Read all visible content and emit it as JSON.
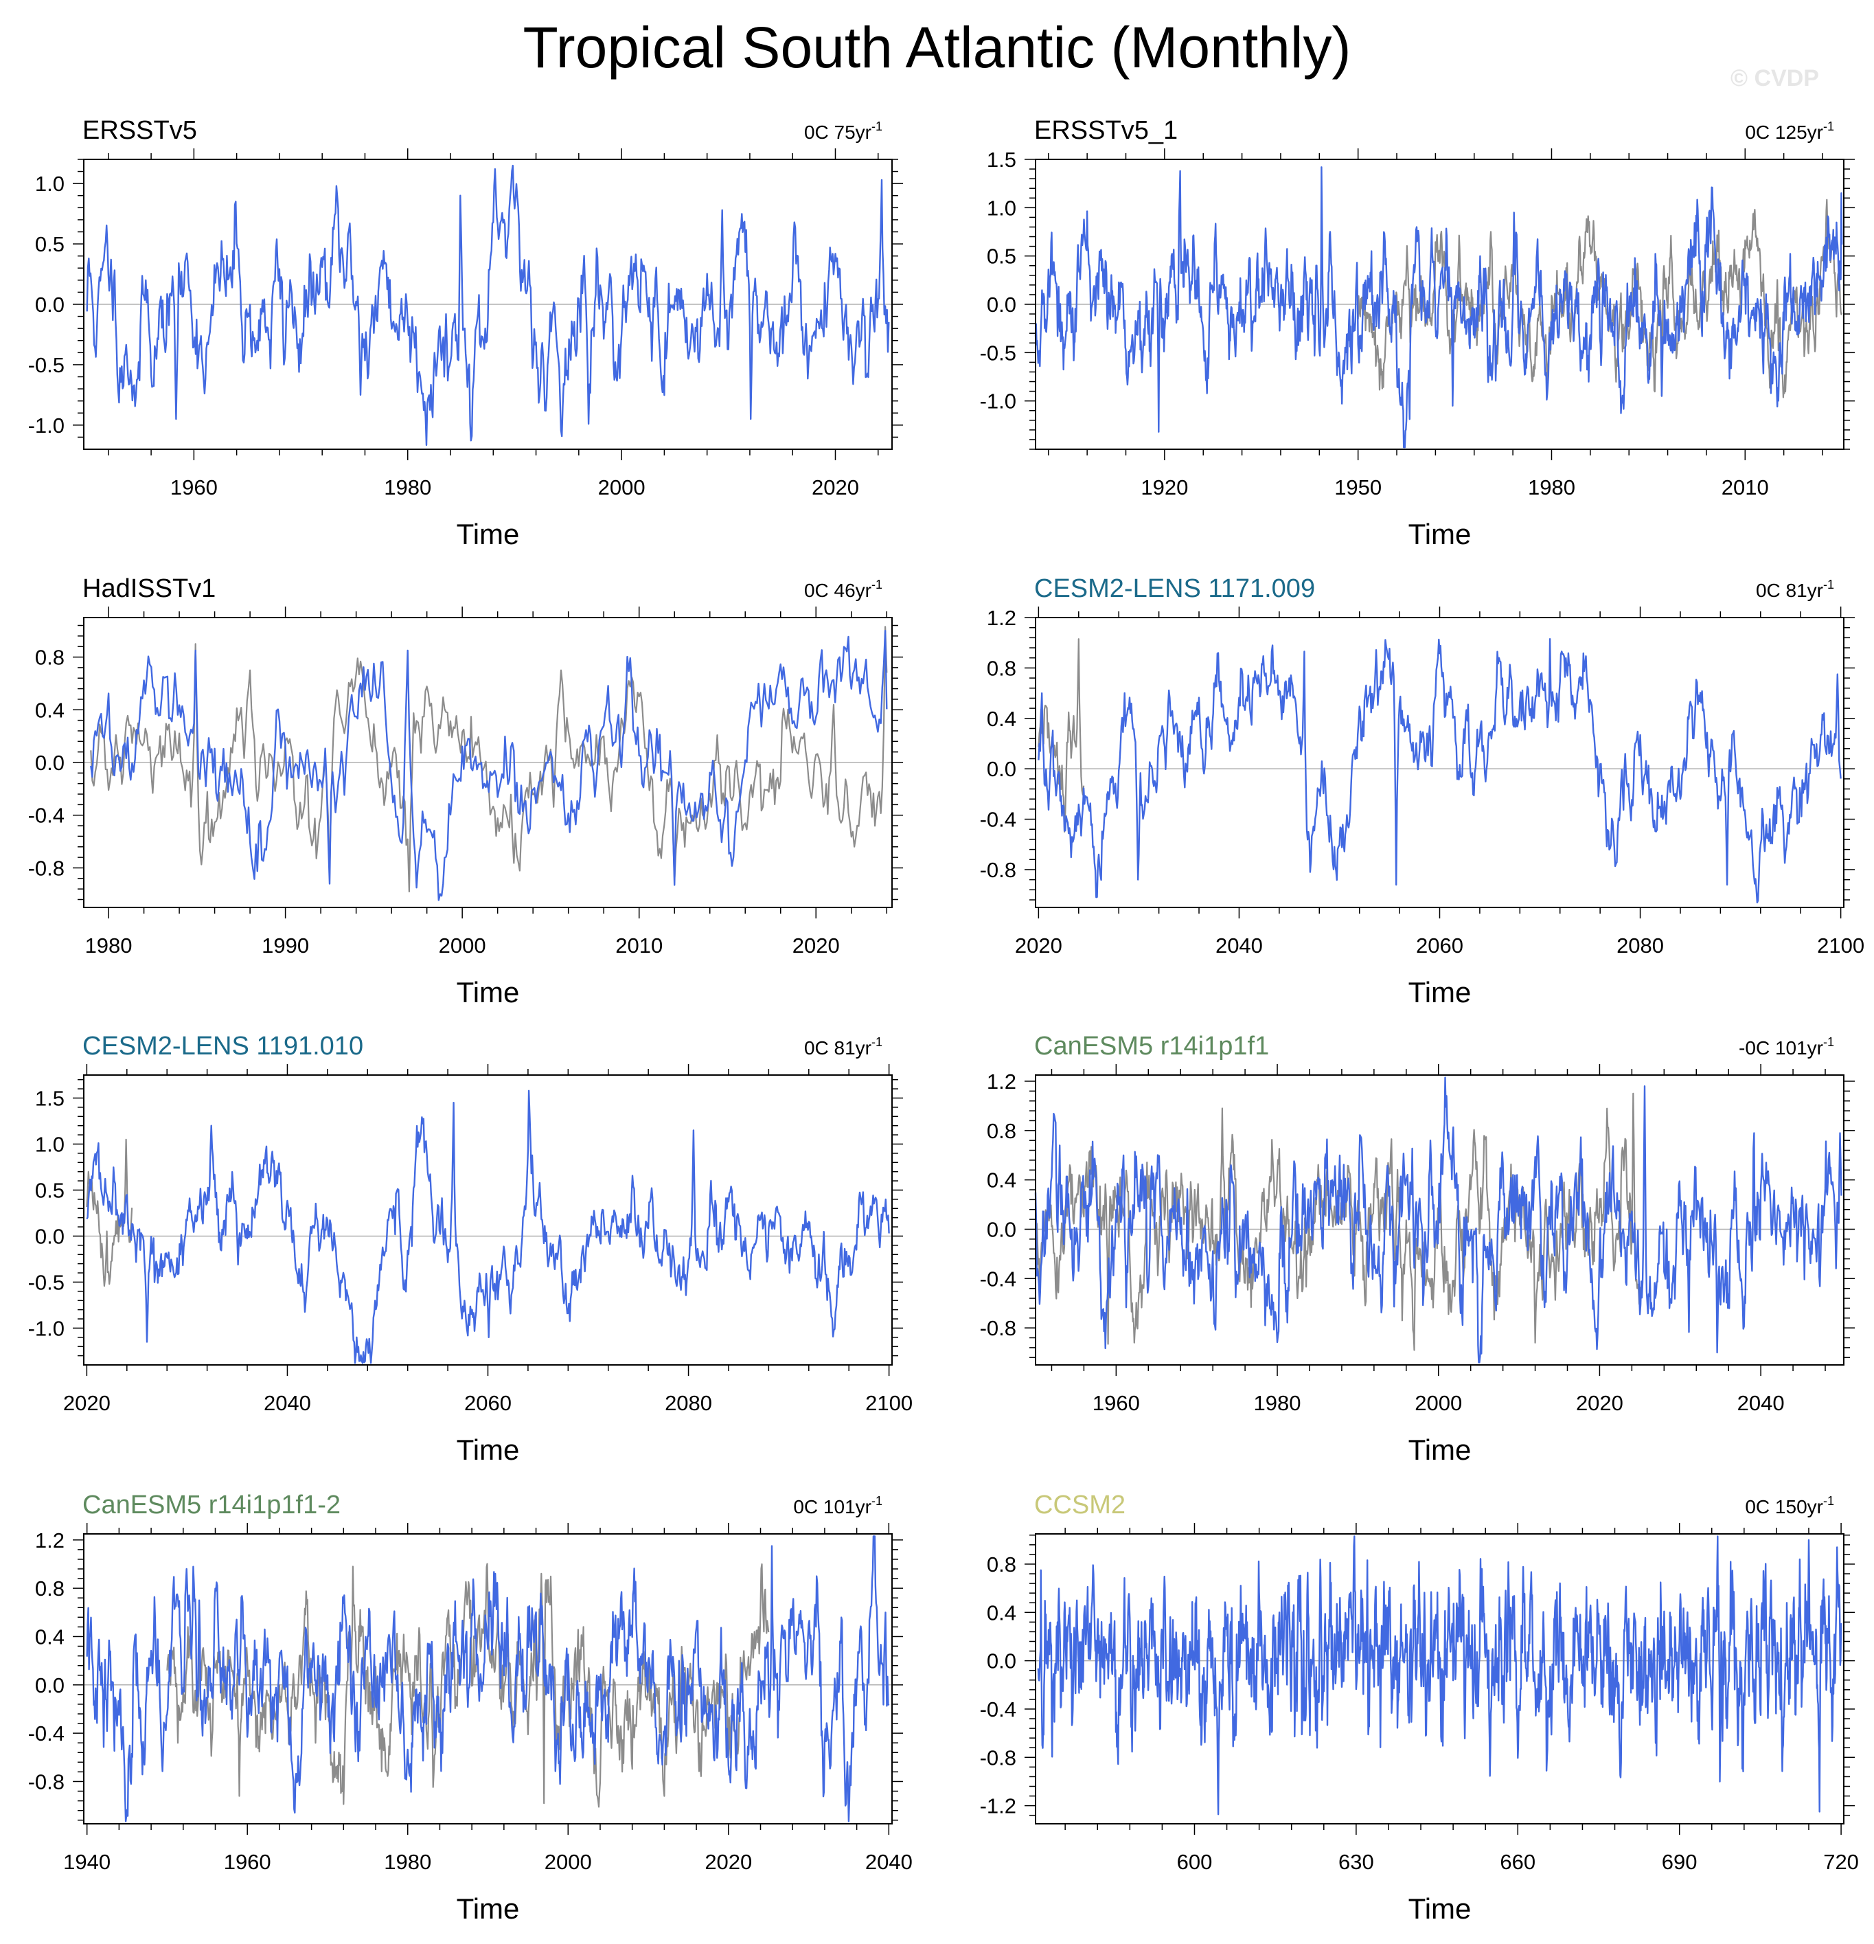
{
  "title": "Tropical South Atlantic (Monthly)",
  "watermark": "© CVDP",
  "colors": {
    "series": "#4169e1",
    "reference": "#8c8c8c",
    "zero_line": "#b0b0b0"
  },
  "chart_data": [
    {
      "type": "line",
      "name": "ERSSTv5",
      "name_color": "#000000",
      "trend": "0C 75yr",
      "xlabel": "Time",
      "xlim": [
        1949.7,
        2025.3
      ],
      "ylim": [
        -1.2,
        1.2
      ],
      "xticks": [
        1960,
        1980,
        2000,
        2020
      ],
      "yticks": [
        -1.0,
        -0.5,
        0.0,
        0.5,
        1.0
      ],
      "ytick_labels": [
        "-1.0",
        "-0.5",
        "0.0",
        "0.5",
        "1.0"
      ],
      "series": [
        {
          "role": "main",
          "x_start": 1950.0,
          "x_end": 2025.0,
          "seed": 11,
          "amp": 0.42,
          "persist": 0.93,
          "peaks": [
            [
              1950.2,
              0.38
            ],
            [
              1952.8,
              -0.58
            ],
            [
              1958.3,
              -0.95
            ],
            [
              1963.9,
              0.85
            ],
            [
              1968.4,
              -0.5
            ],
            [
              1973.3,
              0.98
            ],
            [
              1975.6,
              -0.75
            ],
            [
              1984.9,
              0.9
            ],
            [
              1989.0,
              0.7
            ],
            [
              1992.8,
              -0.88
            ],
            [
              1996.9,
              -0.99
            ],
            [
              2009.4,
              0.78
            ],
            [
              2012.1,
              -0.95
            ],
            [
              2024.3,
              1.03
            ]
          ]
        }
      ]
    },
    {
      "type": "line",
      "name": "ERSSTv5_1",
      "name_color": "#000000",
      "trend": "0C 125yr",
      "xlabel": "Time",
      "xlim": [
        1900,
        2025.3
      ],
      "ylim": [
        -1.5,
        1.5
      ],
      "xticks": [
        1920,
        1950,
        1980,
        2010
      ],
      "yticks": [
        -1.0,
        -0.5,
        0.0,
        0.5,
        1.0,
        1.5
      ],
      "ytick_labels": [
        "-1.0",
        "-0.5",
        "0.0",
        "0.5",
        "1.0",
        "1.5"
      ],
      "series": [
        {
          "role": "reference",
          "x_start": 1950.0,
          "x_end": 2025.0,
          "seed": 12,
          "amp": 0.36,
          "persist": 0.93,
          "peaks": [
            [
              1974.2,
              0.95
            ],
            [
              1997.1,
              -0.95
            ]
          ]
        },
        {
          "role": "main",
          "x_start": 1900.0,
          "x_end": 2025.0,
          "seed": 13,
          "amp": 0.4,
          "persist": 0.9,
          "peaks": [
            [
              1919.1,
              -1.32
            ],
            [
              1922.4,
              1.38
            ],
            [
              1944.3,
              1.42
            ],
            [
              1956.5,
              -1.0
            ],
            [
              1964.7,
              -1.05
            ],
            [
              1974.2,
              0.95
            ],
            [
              1997.1,
              -0.95
            ],
            [
              2024.9,
              1.15
            ]
          ]
        }
      ]
    },
    {
      "type": "line",
      "name": "HadISSTv1",
      "name_color": "#000000",
      "trend": "0C 46yr",
      "xlabel": "Time",
      "xlim": [
        1978.6,
        2024.3
      ],
      "ylim": [
        -1.1,
        1.1
      ],
      "xticks": [
        1980,
        1990,
        2000,
        2010,
        2020
      ],
      "yticks": [
        -0.8,
        -0.4,
        0.0,
        0.4,
        0.8
      ],
      "ytick_labels": [
        "-0.8",
        "-0.4",
        "0.0",
        "0.4",
        "0.8"
      ],
      "series": [
        {
          "role": "reference",
          "x_start": 1979.0,
          "x_end": 2024.0,
          "seed": 21,
          "amp": 0.34,
          "persist": 0.93,
          "peaks": [
            [
              1981.0,
              0.3
            ],
            [
              1984.9,
              0.9
            ],
            [
              1988.0,
              0.7
            ],
            [
              1992.5,
              -0.85
            ],
            [
              1997.0,
              -0.98
            ],
            [
              2012.0,
              -0.9
            ],
            [
              2023.9,
              1.03
            ]
          ]
        },
        {
          "role": "main",
          "x_start": 1979.0,
          "x_end": 2024.0,
          "seed": 22,
          "amp": 0.34,
          "persist": 0.93,
          "peaks": [
            [
              1984.9,
              0.85
            ],
            [
              1992.5,
              -0.92
            ],
            [
              1996.9,
              0.85
            ],
            [
              1997.4,
              -0.95
            ],
            [
              2012.0,
              -0.93
            ],
            [
              2023.9,
              1.0
            ]
          ]
        }
      ]
    },
    {
      "type": "line",
      "name": "CESM2-LENS 1171.009",
      "name_color": "#1b6a8a",
      "trend": "0C 81yr",
      "xlabel": "Time",
      "xlim": [
        2019.7,
        2100.3
      ],
      "ylim": [
        -1.1,
        1.2
      ],
      "xticks": [
        2020,
        2040,
        2060,
        2080,
        2100
      ],
      "yticks": [
        -0.8,
        -0.4,
        0.0,
        0.4,
        0.8,
        1.2
      ],
      "ytick_labels": [
        "-0.8",
        "-0.4",
        "0.0",
        "0.4",
        "0.8",
        "1.2"
      ],
      "series": [
        {
          "role": "reference",
          "x_start": 2020.0,
          "x_end": 2024.5,
          "seed": 31,
          "amp": 0.3,
          "persist": 0.9,
          "peaks": [
            [
              2022.6,
              -0.5
            ],
            [
              2024.0,
              1.03
            ]
          ]
        },
        {
          "role": "main",
          "x_start": 2020.0,
          "x_end": 2100.0,
          "seed": 32,
          "amp": 0.4,
          "persist": 0.96,
          "peaks": [
            [
              2020.3,
              0.6
            ],
            [
              2029.9,
              -0.88
            ],
            [
              2046.5,
              0.93
            ],
            [
              2055.7,
              -0.92
            ],
            [
              2071.0,
              1.03
            ],
            [
              2088.7,
              -0.92
            ],
            [
              2099.7,
              0.75
            ]
          ]
        }
      ]
    },
    {
      "type": "line",
      "name": "CESM2-LENS 1191.010",
      "name_color": "#1b6a8a",
      "trend": "0C 81yr",
      "xlabel": "Time",
      "xlim": [
        2019.7,
        2100.3
      ],
      "ylim": [
        -1.4,
        1.75
      ],
      "xticks": [
        2020,
        2040,
        2060,
        2080,
        2100
      ],
      "yticks": [
        -1.0,
        -0.5,
        0.0,
        0.5,
        1.0,
        1.5
      ],
      "ytick_labels": [
        "-1.0",
        "-0.5",
        "0.0",
        "0.5",
        "1.0",
        "1.5"
      ],
      "series": [
        {
          "role": "reference",
          "x_start": 2020.0,
          "x_end": 2024.5,
          "seed": 41,
          "amp": 0.35,
          "persist": 0.9,
          "peaks": [
            [
              2020.2,
              0.7
            ],
            [
              2021.8,
              -0.45
            ],
            [
              2023.9,
              1.05
            ]
          ]
        },
        {
          "role": "main",
          "x_start": 2020.0,
          "x_end": 2100.0,
          "seed": 42,
          "amp": 0.48,
          "persist": 0.96,
          "peaks": [
            [
              2020.5,
              0.65
            ],
            [
              2026.0,
              -1.15
            ],
            [
              2032.4,
              1.2
            ],
            [
              2056.6,
              1.45
            ],
            [
              2060.1,
              -1.1
            ],
            [
              2064.1,
              1.58
            ],
            [
              2080.5,
              1.15
            ],
            [
              2099.5,
              0.3
            ]
          ]
        }
      ]
    },
    {
      "type": "line",
      "name": "CanESM5 r14i1p1f1",
      "name_color": "#5e8a5e",
      "trend": "-0C 101yr",
      "xlabel": "Time",
      "xlim": [
        1950,
        2050.3
      ],
      "ylim": [
        -1.1,
        1.25
      ],
      "xticks": [
        1960,
        1980,
        2000,
        2020,
        2040
      ],
      "yticks": [
        -0.8,
        -0.4,
        0.0,
        0.4,
        0.8,
        1.2
      ],
      "ytick_labels": [
        "-0.8",
        "-0.4",
        "0.0",
        "0.4",
        "0.8",
        "1.2"
      ],
      "series": [
        {
          "role": "reference",
          "x_start": 1950.0,
          "x_end": 2025.0,
          "seed": 51,
          "amp": 0.34,
          "persist": 0.9,
          "peaks": [
            [
              1959.0,
              -0.93
            ],
            [
              1973.2,
              0.98
            ],
            [
              1997.0,
              -0.98
            ],
            [
              2012.0,
              -0.92
            ],
            [
              2024.2,
              1.1
            ]
          ]
        },
        {
          "role": "main",
          "x_start": 1950.0,
          "x_end": 2050.0,
          "seed": 52,
          "amp": 0.38,
          "persist": 0.88,
          "peaks": [
            [
              1953.0,
              0.68
            ],
            [
              1999.0,
              0.72
            ],
            [
              2025.6,
              1.16
            ],
            [
              2034.6,
              -1.0
            ],
            [
              2039.2,
              0.78
            ],
            [
              2049.7,
              0.05
            ]
          ]
        }
      ]
    },
    {
      "type": "line",
      "name": "CanESM5 r14i1p1f1-2",
      "name_color": "#5e8a5e",
      "trend": "0C 101yr",
      "xlabel": "Time",
      "xlim": [
        1939.6,
        2040.4
      ],
      "ylim": [
        -1.15,
        1.25
      ],
      "xticks": [
        1940,
        1960,
        1980,
        2000,
        2020,
        2040
      ],
      "yticks": [
        -0.8,
        -0.4,
        0.0,
        0.4,
        0.8,
        1.2
      ],
      "ytick_labels": [
        "-0.8",
        "-0.4",
        "0.0",
        "0.4",
        "0.8",
        "1.2"
      ],
      "series": [
        {
          "role": "reference",
          "x_start": 1950.0,
          "x_end": 2025.0,
          "seed": 61,
          "amp": 0.34,
          "persist": 0.9,
          "peaks": [
            [
              1959.0,
              -0.92
            ],
            [
              1973.2,
              0.98
            ],
            [
              1987.8,
              0.7
            ],
            [
              1997.0,
              -0.98
            ],
            [
              2012.0,
              -0.92
            ],
            [
              2024.2,
              1.0
            ]
          ]
        },
        {
          "role": "main",
          "x_start": 1940.0,
          "x_end": 2040.0,
          "seed": 62,
          "amp": 0.38,
          "persist": 0.88,
          "peaks": [
            [
              1945.5,
              -0.82
            ],
            [
              1954.0,
              0.7
            ],
            [
              2025.4,
              1.15
            ],
            [
              2034.6,
              -1.0
            ],
            [
              2039.6,
              0.6
            ]
          ]
        }
      ]
    },
    {
      "type": "line",
      "name": "CCSM2",
      "name_color": "#c8c878",
      "trend": "0C 150yr",
      "xlabel": "Time",
      "xlim": [
        570.5,
        720.5
      ],
      "ylim": [
        -1.35,
        1.05
      ],
      "xticks": [
        600,
        630,
        660,
        690,
        720
      ],
      "yticks": [
        -1.2,
        -0.8,
        -0.4,
        0.0,
        0.4,
        0.8
      ],
      "ytick_labels": [
        "-1.2",
        "-0.8",
        "-0.4",
        "0.0",
        "0.4",
        "0.8"
      ],
      "series": [
        {
          "role": "main",
          "x_start": 571.0,
          "x_end": 720.0,
          "seed": 71,
          "amp": 0.34,
          "persist": 0.72,
          "peaks": [
            [
              571.5,
              0.75
            ],
            [
              697.5,
              -1.0
            ],
            [
              714.0,
              1.0
            ],
            [
              716.0,
              -1.25
            ]
          ]
        }
      ]
    }
  ]
}
